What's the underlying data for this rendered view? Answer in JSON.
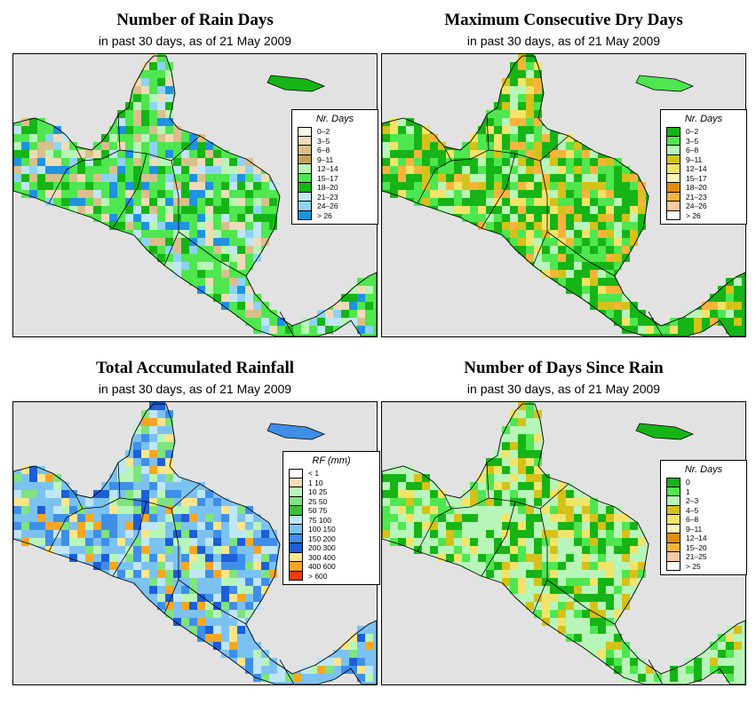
{
  "panels": [
    {
      "id": "rain-days",
      "title": "Number of Rain Days",
      "subtitle": "in past 30 days, as of  21 May 2009",
      "legend": {
        "title": "Nr. Days",
        "items": [
          {
            "label": "0–2",
            "color": "#fbf6ea"
          },
          {
            "label": "3–5",
            "color": "#eedcb8"
          },
          {
            "label": "6–8",
            "color": "#d9bf8c"
          },
          {
            "label": "9–11",
            "color": "#c6a05e"
          },
          {
            "label": "12–14",
            "color": "#b8f5b8"
          },
          {
            "label": "15–17",
            "color": "#4fe64f"
          },
          {
            "label": "18–20",
            "color": "#16b416"
          },
          {
            "label": "21–23",
            "color": "#bfe6f7"
          },
          {
            "label": "24–26",
            "color": "#8fd3f2"
          },
          {
            "label": "> 26",
            "color": "#1e93e0"
          }
        ]
      },
      "dominant_colors": [
        "#4fe64f",
        "#16b416",
        "#b8f5b8",
        "#d9bf8c",
        "#eedcb8",
        "#8fd3f2",
        "#bfe6f7",
        "#1e93e0"
      ]
    },
    {
      "id": "max-dry-days",
      "title": "Maximum Consecutive Dry Days",
      "subtitle": "in past 30 days, as of  21 May 2009",
      "legend": {
        "title": "Nr. Days",
        "items": [
          {
            "label": "0–2",
            "color": "#16b416"
          },
          {
            "label": "3–5",
            "color": "#4fe64f"
          },
          {
            "label": "6–8",
            "color": "#b8f5b8"
          },
          {
            "label": "9–11",
            "color": "#d4c21a"
          },
          {
            "label": "12–14",
            "color": "#f0e46a"
          },
          {
            "label": "15–17",
            "color": "#fbf4b8"
          },
          {
            "label": "18–20",
            "color": "#e08e0b"
          },
          {
            "label": "21–23",
            "color": "#f6b43c"
          },
          {
            "label": "24–26",
            "color": "#f7c9a4"
          },
          {
            "label": "> 26",
            "color": "#ffffff"
          }
        ]
      },
      "dominant_colors": [
        "#16b416",
        "#4fe64f",
        "#b8f5b8",
        "#d4c21a",
        "#f0e46a",
        "#f6b43c"
      ]
    },
    {
      "id": "total-rainfall",
      "title": "Total Accumulated Rainfall",
      "subtitle": "in past 30 days, as of  21 May 2009",
      "legend": {
        "title": "RF (mm)",
        "items": [
          {
            "label": "< 1",
            "color": "#ffffff"
          },
          {
            "label": "1  10",
            "color": "#f1dfb8"
          },
          {
            "label": "10  25",
            "color": "#b8f5b8"
          },
          {
            "label": "25  50",
            "color": "#7fe37f"
          },
          {
            "label": "50  75",
            "color": "#3cbf3c"
          },
          {
            "label": "75  100",
            "color": "#bfe6f7"
          },
          {
            "label": "100  150",
            "color": "#7cc2f0"
          },
          {
            "label": "150  200",
            "color": "#3f8fe8"
          },
          {
            "label": "200  300",
            "color": "#1c5fd8"
          },
          {
            "label": "300  400",
            "color": "#fbe58a"
          },
          {
            "label": "400  600",
            "color": "#f5a623"
          },
          {
            "label": "> 600",
            "color": "#f03c0c"
          }
        ]
      },
      "dominant_colors": [
        "#7cc2f0",
        "#3f8fe8",
        "#bfe6f7",
        "#7fe37f",
        "#b8f5b8",
        "#1c5fd8",
        "#f5a623",
        "#fbe58a"
      ]
    },
    {
      "id": "days-since-rain",
      "title": "Number of Days Since Rain",
      "subtitle": "in past 30 days, as of  21 May 2009",
      "legend": {
        "title": "Nr. Days",
        "items": [
          {
            "label": "0",
            "color": "#16b416"
          },
          {
            "label": "1",
            "color": "#4fe64f"
          },
          {
            "label": "2–3",
            "color": "#b8f5b8"
          },
          {
            "label": "4–5",
            "color": "#d4c21a"
          },
          {
            "label": "6–8",
            "color": "#f0e46a"
          },
          {
            "label": "9–11",
            "color": "#fbf4b8"
          },
          {
            "label": "12–14",
            "color": "#e08e0b"
          },
          {
            "label": "15–20",
            "color": "#f6b43c"
          },
          {
            "label": "21–25",
            "color": "#f7c9a4"
          },
          {
            "label": "> 25",
            "color": "#ffffff"
          }
        ]
      },
      "dominant_colors": [
        "#b8f5b8",
        "#16b416",
        "#4fe64f",
        "#d4c21a",
        "#f0e46a"
      ]
    }
  ]
}
